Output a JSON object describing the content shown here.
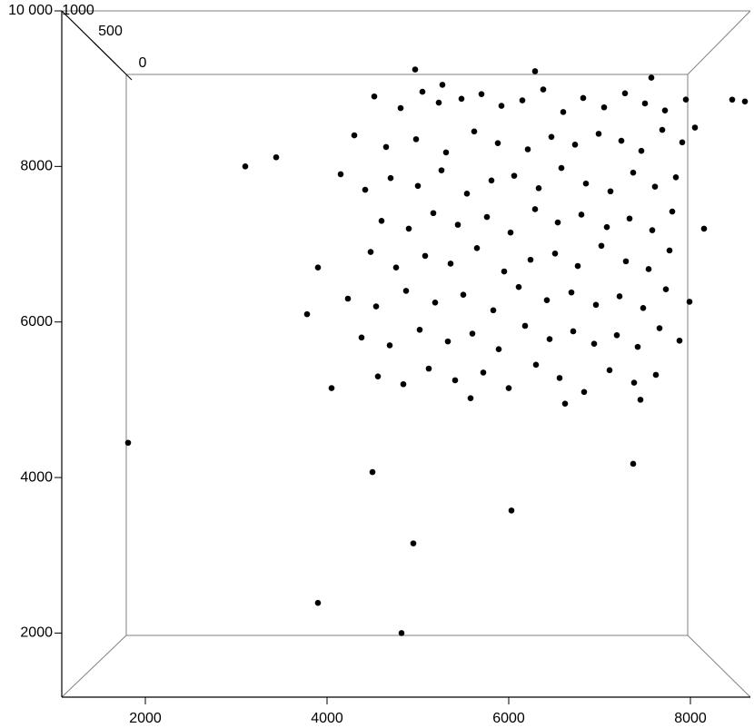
{
  "chart_data": {
    "type": "scatter3d",
    "color": "#000000",
    "xlim": [
      1080,
      8660
    ],
    "ylim": [
      1176,
      10000
    ],
    "zlim": [
      0,
      1000
    ],
    "xticks": [
      2000,
      4000,
      6000,
      8000
    ],
    "yticks": [
      2000,
      4000,
      6000,
      8000,
      {
        "value": 10000,
        "label": "10 000"
      }
    ],
    "zticks": [
      0,
      500,
      1000
    ],
    "x": [
      4520,
      4810,
      5050,
      5230,
      5480,
      5700,
      5920,
      6150,
      6380,
      6600,
      6820,
      7050,
      7280,
      7500,
      7720,
      7950,
      4300,
      4650,
      4980,
      5310,
      5620,
      5880,
      6210,
      6470,
      6730,
      6990,
      7240,
      7460,
      7690,
      7910,
      4150,
      4420,
      4700,
      5000,
      5260,
      5540,
      5810,
      6060,
      6330,
      6580,
      6850,
      7120,
      7370,
      7610,
      7840,
      4600,
      4900,
      5170,
      5440,
      5760,
      6020,
      6290,
      6540,
      6800,
      7080,
      7330,
      7580,
      7800,
      4480,
      4760,
      5080,
      5360,
      5650,
      5950,
      6240,
      6510,
      6760,
      7020,
      7290,
      7540,
      7770,
      4230,
      4540,
      4870,
      5190,
      5500,
      5830,
      6110,
      6420,
      6690,
      6960,
      7220,
      7480,
      7730,
      7990,
      4380,
      4690,
      5020,
      5330,
      5600,
      5890,
      6180,
      6450,
      6710,
      6940,
      7190,
      7420,
      7660,
      7880,
      4560,
      4840,
      5120,
      5410,
      5720,
      6000,
      6300,
      6560,
      6830,
      7110,
      7380,
      7620,
      3780,
      3900,
      4050,
      8050,
      8150,
      5580,
      6620,
      7450,
      5270,
      1810,
      3100,
      3440,
      4500,
      4950,
      3900,
      4820,
      6030,
      7370,
      4970,
      6290,
      7570,
      8460,
      8600
    ],
    "y": [
      8900,
      8750,
      8960,
      8820,
      8870,
      8930,
      8780,
      8850,
      8990,
      8700,
      8880,
      8760,
      8940,
      8810,
      8720,
      8860,
      8400,
      8250,
      8350,
      8180,
      8450,
      8300,
      8220,
      8380,
      8280,
      8420,
      8330,
      8200,
      8470,
      8310,
      7900,
      7700,
      7850,
      7750,
      7950,
      7650,
      7820,
      7880,
      7720,
      7980,
      7780,
      7680,
      7920,
      7740,
      7860,
      7300,
      7200,
      7400,
      7250,
      7350,
      7150,
      7450,
      7280,
      7380,
      7220,
      7330,
      7180,
      7420,
      6900,
      6700,
      6850,
      6750,
      6950,
      6650,
      6800,
      6880,
      6720,
      6980,
      6780,
      6680,
      6920,
      6300,
      6200,
      6400,
      6250,
      6350,
      6150,
      6450,
      6280,
      6380,
      6220,
      6330,
      6180,
      6420,
      6260,
      5800,
      5700,
      5900,
      5750,
      5850,
      5650,
      5950,
      5780,
      5880,
      5720,
      5830,
      5680,
      5920,
      5760,
      5300,
      5200,
      5400,
      5250,
      5350,
      5150,
      5450,
      5280,
      5100,
      5380,
      5220,
      5320,
      6100,
      6700,
      5150,
      8500,
      7200,
      5020,
      4950,
      5000,
      9050,
      4447,
      8000,
      8118,
      4070,
      3153,
      2388,
      2000,
      3576,
      4176,
      9247,
      9224,
      9141,
      8859,
      8835
    ]
  }
}
